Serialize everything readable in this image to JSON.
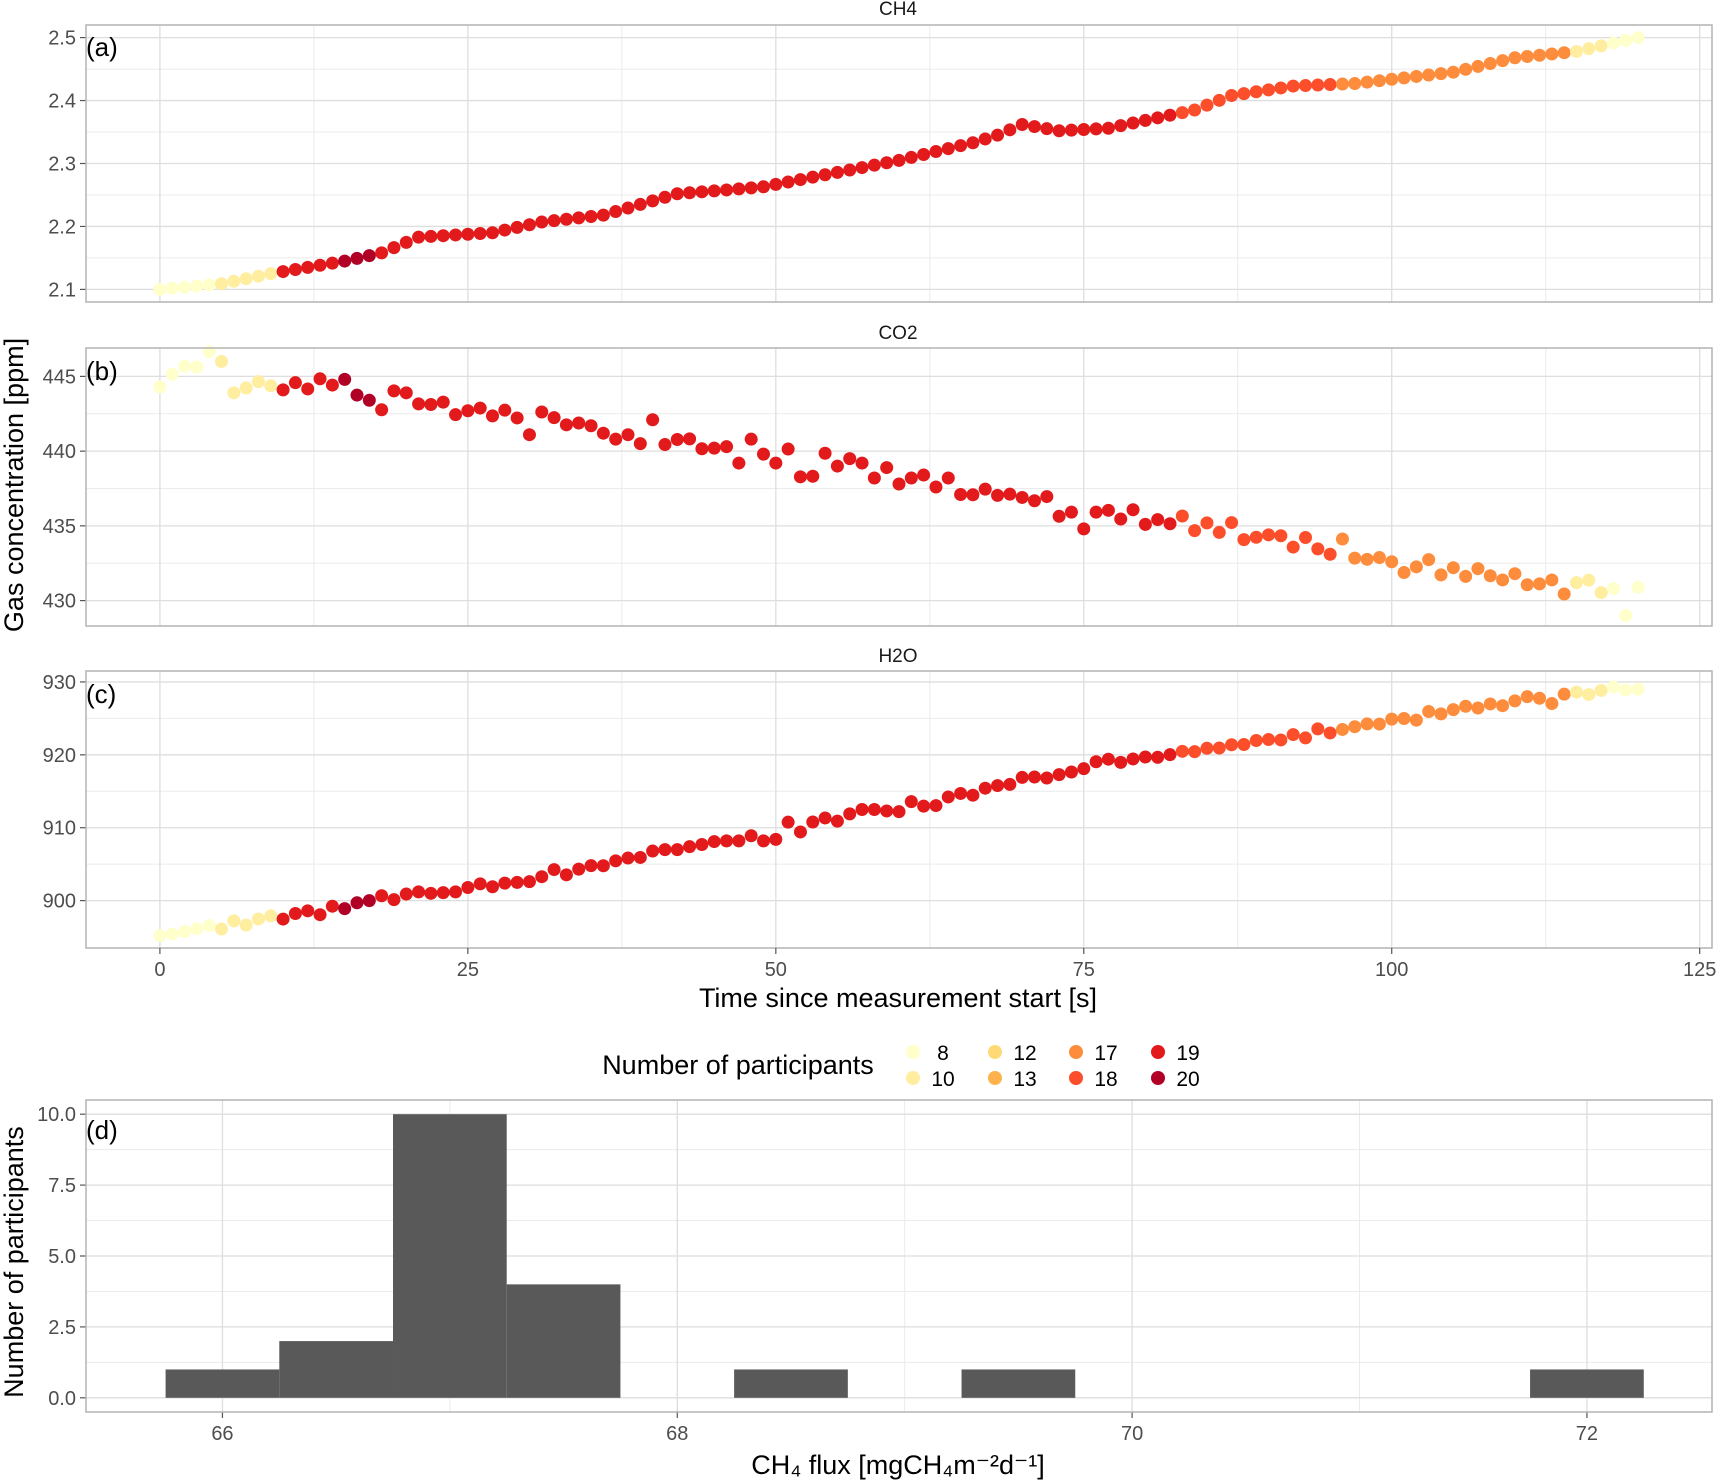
{
  "figure": {
    "ylabel_top": "Gas concentration [ppm]",
    "xlabel_top": "Time since measurement start [s]",
    "legend_title": "Number of participants"
  },
  "legend": {
    "items": [
      {
        "label": "8",
        "color": "#FFFFCC"
      },
      {
        "label": "10",
        "color": "#FFEDA0"
      },
      {
        "label": "12",
        "color": "#FED976"
      },
      {
        "label": "13",
        "color": "#FEB24C"
      },
      {
        "label": "17",
        "color": "#FD8D3C"
      },
      {
        "label": "18",
        "color": "#FC4E2A"
      },
      {
        "label": "19",
        "color": "#E31A1C"
      },
      {
        "label": "20",
        "color": "#B10026"
      }
    ]
  },
  "chart_data": [
    {
      "id": "ch4",
      "type": "scatter",
      "title": "CH4",
      "panel_label": "(a)",
      "xlim": [
        -6,
        126
      ],
      "ylim": [
        2.08,
        2.52
      ],
      "xticks": [
        0,
        25,
        50,
        75,
        100,
        125
      ],
      "yticks": [
        2.1,
        2.2,
        2.3,
        2.4,
        2.5
      ],
      "ytick_labels": [
        "2.1",
        "2.2",
        "2.3",
        "2.4",
        "2.5"
      ],
      "anchors": [
        [
          0,
          2.1
        ],
        [
          5,
          2.109
        ],
        [
          9,
          2.125
        ],
        [
          15,
          2.145
        ],
        [
          18,
          2.158
        ],
        [
          21,
          2.183
        ],
        [
          27,
          2.19
        ],
        [
          31,
          2.207
        ],
        [
          36,
          2.218
        ],
        [
          42,
          2.252
        ],
        [
          46,
          2.258
        ],
        [
          49,
          2.263
        ],
        [
          60,
          2.305
        ],
        [
          66,
          2.333
        ],
        [
          68,
          2.345
        ],
        [
          70,
          2.362
        ],
        [
          73,
          2.352
        ],
        [
          77,
          2.356
        ],
        [
          84,
          2.385
        ],
        [
          87,
          2.408
        ],
        [
          92,
          2.423
        ],
        [
          97,
          2.427
        ],
        [
          105,
          2.445
        ],
        [
          110,
          2.468
        ],
        [
          115,
          2.478
        ],
        [
          120,
          2.5
        ]
      ]
    },
    {
      "id": "co2",
      "type": "scatter",
      "title": "CO2",
      "panel_label": "(b)",
      "xlim": [
        -6,
        126
      ],
      "ylim": [
        428.3,
        446.9
      ],
      "xticks": [
        0,
        25,
        50,
        75,
        100,
        125
      ],
      "yticks": [
        430,
        435,
        440,
        445
      ],
      "ytick_labels": [
        "430",
        "435",
        "440",
        "445"
      ],
      "anchors": [
        [
          0,
          444.3
        ],
        [
          5,
          446.0
        ],
        [
          6,
          444.1
        ],
        [
          10,
          444.2
        ],
        [
          15,
          444.6
        ],
        [
          17,
          442.7
        ],
        [
          20,
          443.8
        ],
        [
          25,
          442.6
        ],
        [
          30,
          442.5
        ],
        [
          35,
          441.6
        ],
        [
          40,
          440.6
        ],
        [
          45,
          440.3
        ],
        [
          50,
          439.8
        ],
        [
          55,
          439.5
        ],
        [
          60,
          438.5
        ],
        [
          65,
          437.5
        ],
        [
          70,
          436.9
        ],
        [
          75,
          435.8
        ],
        [
          80,
          435.4
        ],
        [
          85,
          435.0
        ],
        [
          90,
          434.3
        ],
        [
          95,
          433.5
        ],
        [
          100,
          432.6
        ],
        [
          105,
          432.0
        ],
        [
          110,
          431.6
        ],
        [
          115,
          430.9
        ],
        [
          118,
          430.8
        ],
        [
          119,
          429.0
        ],
        [
          120,
          430.9
        ]
      ]
    },
    {
      "id": "h2o",
      "type": "scatter",
      "title": "H2O",
      "panel_label": "(c)",
      "xlim": [
        -6,
        126
      ],
      "ylim": [
        893.5,
        931.5
      ],
      "xticks": [
        0,
        25,
        50,
        75,
        100,
        125
      ],
      "xtick_labels": [
        "0",
        "25",
        "50",
        "75",
        "100",
        "125"
      ],
      "yticks": [
        900,
        910,
        920,
        930
      ],
      "ytick_labels": [
        "900",
        "910",
        "920",
        "930"
      ],
      "anchors": [
        [
          0,
          895.2
        ],
        [
          5,
          896.3
        ],
        [
          9,
          897.6
        ],
        [
          15,
          899.2
        ],
        [
          17,
          900.2
        ],
        [
          20,
          900.7
        ],
        [
          30,
          902.7
        ],
        [
          40,
          906.5
        ],
        [
          45,
          908.0
        ],
        [
          50,
          909.0
        ],
        [
          55,
          911.3
        ],
        [
          60,
          912.8
        ],
        [
          65,
          914.2
        ],
        [
          70,
          916.5
        ],
        [
          75,
          917.8
        ],
        [
          77,
          919.3
        ],
        [
          80,
          919.5
        ],
        [
          85,
          920.8
        ],
        [
          90,
          922.0
        ],
        [
          95,
          923.2
        ],
        [
          100,
          924.6
        ],
        [
          105,
          926.0
        ],
        [
          110,
          927.3
        ],
        [
          115,
          928.2
        ],
        [
          118,
          929.0
        ],
        [
          120,
          928.8
        ]
      ]
    },
    {
      "id": "hist",
      "type": "bar",
      "title": "",
      "panel_label": "(d)",
      "xlabel": "CH₄ flux [mgCH₄m⁻²d⁻¹]",
      "ylabel": "Number of participants",
      "xlim": [
        65.4,
        72.55
      ],
      "ylim": [
        -0.5,
        10.5
      ],
      "xticks": [
        66,
        68,
        70,
        72
      ],
      "xtick_labels": [
        "66",
        "68",
        "70",
        "72"
      ],
      "yticks": [
        0,
        2.5,
        5,
        7.5,
        10
      ],
      "ytick_labels": [
        "0.0",
        "2.5",
        "5.0",
        "7.5",
        "10.0"
      ],
      "bar_color": "#595959",
      "bins": [
        {
          "x0": 65.75,
          "x1": 66.25,
          "value": 1
        },
        {
          "x0": 66.25,
          "x1": 66.75,
          "value": 2
        },
        {
          "x0": 66.75,
          "x1": 67.25,
          "value": 10
        },
        {
          "x0": 67.25,
          "x1": 67.75,
          "value": 4
        },
        {
          "x0": 68.25,
          "x1": 68.75,
          "value": 1
        },
        {
          "x0": 69.25,
          "x1": 69.75,
          "value": 1
        },
        {
          "x0": 71.75,
          "x1": 72.25,
          "value": 1
        }
      ]
    }
  ],
  "point_noise": {
    "co2": [
      0,
      0.5,
      0.7,
      0.3,
      1.0,
      0,
      -0.2,
      0.1,
      0.5,
      0.2,
      -0.1,
      0.3,
      -0.2,
      0.4,
      -0.1,
      0.2,
      0.1,
      0.7,
      -0.3,
      0.6,
      0.1,
      -0.4,
      -0.2,
      0.2,
      -0.4,
      0.1,
      0.3,
      -0.2,
      0.2,
      -0.3,
      -1.4,
      0.3,
      0.1,
      -0.2,
      0.1,
      0.1,
      -0.2,
      -0.4,
      0.1,
      -0.3,
      1.5,
      -0.1,
      0.3,
      0.4,
      -0.2,
      -0.1,
      0.1,
      -0.9,
      0.8,
      -0.1,
      -0.6,
      0.4,
      -1.4,
      -1.3,
      0.3,
      -0.5,
      0.2,
      0.1,
      -0.7,
      0.2,
      -0.7,
      -0.1,
      0.3,
      -0.3,
      0.5,
      -0.4,
      -0.3,
      0.2,
      -0.1,
      0.1,
      0,
      0,
      0.5,
      -0.6,
      -0.1,
      -1.0,
      0.2,
      0.4,
      -0.1,
      0.6,
      -0.3,
      0.1,
      -0.1,
      0.5,
      -0.4,
      0.2,
      -0.3,
      0.5,
      -0.5,
      -0.2,
      0.1,
      0.2,
      -0.4,
      0.4,
      -0.2,
      -0.4,
      0.8,
      -0.3,
      -0.2,
      0.1,
      0,
      -0.6,
      -0.1,
      0.5,
      -0.4,
      0.2,
      -0.3,
      0.3,
      -0.1,
      -0.3,
      0.2,
      -0.4,
      -0.2,
      0.2,
      -0.6,
      0.3,
      0.5,
      -0.3,
      0,
      0,
      0
    ],
    "h2o": [
      0,
      0,
      0.1,
      0.3,
      0.5,
      -0.2,
      0.6,
      -0.3,
      0.2,
      0.3,
      -0.4,
      0.1,
      0.2,
      -0.6,
      0.3,
      -0.3,
      0,
      -0.2,
      0.3,
      -0.4,
      0.2,
      0.3,
      -0.1,
      -0.2,
      -0.3,
      0.1,
      0.4,
      -0.2,
      0.1,
      0,
      -0.1,
      0.2,
      0.8,
      -0.3,
      0.1,
      0.2,
      -0.2,
      0.1,
      0.1,
      -0.2,
      0.3,
      0.2,
      -0.1,
      0,
      0,
      0.1,
      0,
      -0.2,
      0.3,
      -0.6,
      -0.6,
      1.3,
      -0.5,
      0.4,
      0.5,
      -0.4,
      0.3,
      0.6,
      0.3,
      -0.2,
      -0.6,
      0.5,
      -0.4,
      -0.6,
      0.3,
      0.5,
      -0.2,
      0.3,
      0.2,
      -0.1,
      0.4,
      0.2,
      -0.2,
      0,
      0.1,
      0.3,
      0.5,
      0.1,
      -0.4,
      0,
      0.2,
      -0.1,
      0,
      0.2,
      -0.1,
      0.1,
      -0.1,
      0.1,
      -0.1,
      0.2,
      0.1,
      -0.2,
      0.3,
      -0.4,
      0.6,
      -0.2,
      0,
      0.1,
      0.2,
      -0.1,
      0.3,
      0.1,
      -0.4,
      0.5,
      -0.1,
      0.2,
      0.4,
      -0.1,
      0.2,
      -0.3,
      0.1,
      0.5,
      0.1,
      -0.8,
      0.3,
      0.4,
      -0.2,
      0.1,
      0.3,
      0,
      0.2
    ],
    "ch4": [
      0,
      0,
      0,
      0,
      0,
      0,
      0,
      0,
      0,
      0,
      0,
      0,
      0,
      0,
      0,
      0,
      0,
      0,
      0,
      0,
      0,
      0,
      0,
      0,
      0,
      0,
      0,
      0,
      0,
      0,
      0,
      0,
      0,
      0,
      0,
      0,
      0,
      0,
      0,
      0,
      0,
      0,
      0,
      0,
      0,
      0,
      0,
      0,
      0,
      0,
      0,
      0,
      0,
      0,
      0,
      0,
      0,
      0,
      0,
      0,
      0,
      0,
      0,
      0,
      0,
      0,
      0,
      0,
      0,
      0,
      0,
      0,
      0,
      0,
      0,
      0,
      0,
      0,
      0,
      0,
      0,
      0,
      0,
      0,
      0,
      0,
      0,
      0,
      0,
      0,
      0,
      0,
      0,
      0,
      0,
      0,
      0,
      0,
      0,
      0,
      0,
      0,
      0,
      0,
      0,
      0,
      0,
      0,
      0,
      0,
      0,
      0,
      0,
      0,
      0,
      0,
      0,
      0,
      0,
      0,
      0
    ]
  },
  "participant_groups": [
    {
      "from": 0,
      "to": 4,
      "label": "8"
    },
    {
      "from": 5,
      "to": 9,
      "label": "10"
    },
    {
      "from": 10,
      "to": 14,
      "label": "19"
    },
    {
      "from": 15,
      "to": 17,
      "label": "20"
    },
    {
      "from": 18,
      "to": 82,
      "label": "19"
    },
    {
      "from": 83,
      "to": 95,
      "label": "18"
    },
    {
      "from": 96,
      "to": 114,
      "label": "17"
    },
    {
      "from": 115,
      "to": 117,
      "label": "10"
    },
    {
      "from": 118,
      "to": 120,
      "label": "8"
    }
  ]
}
